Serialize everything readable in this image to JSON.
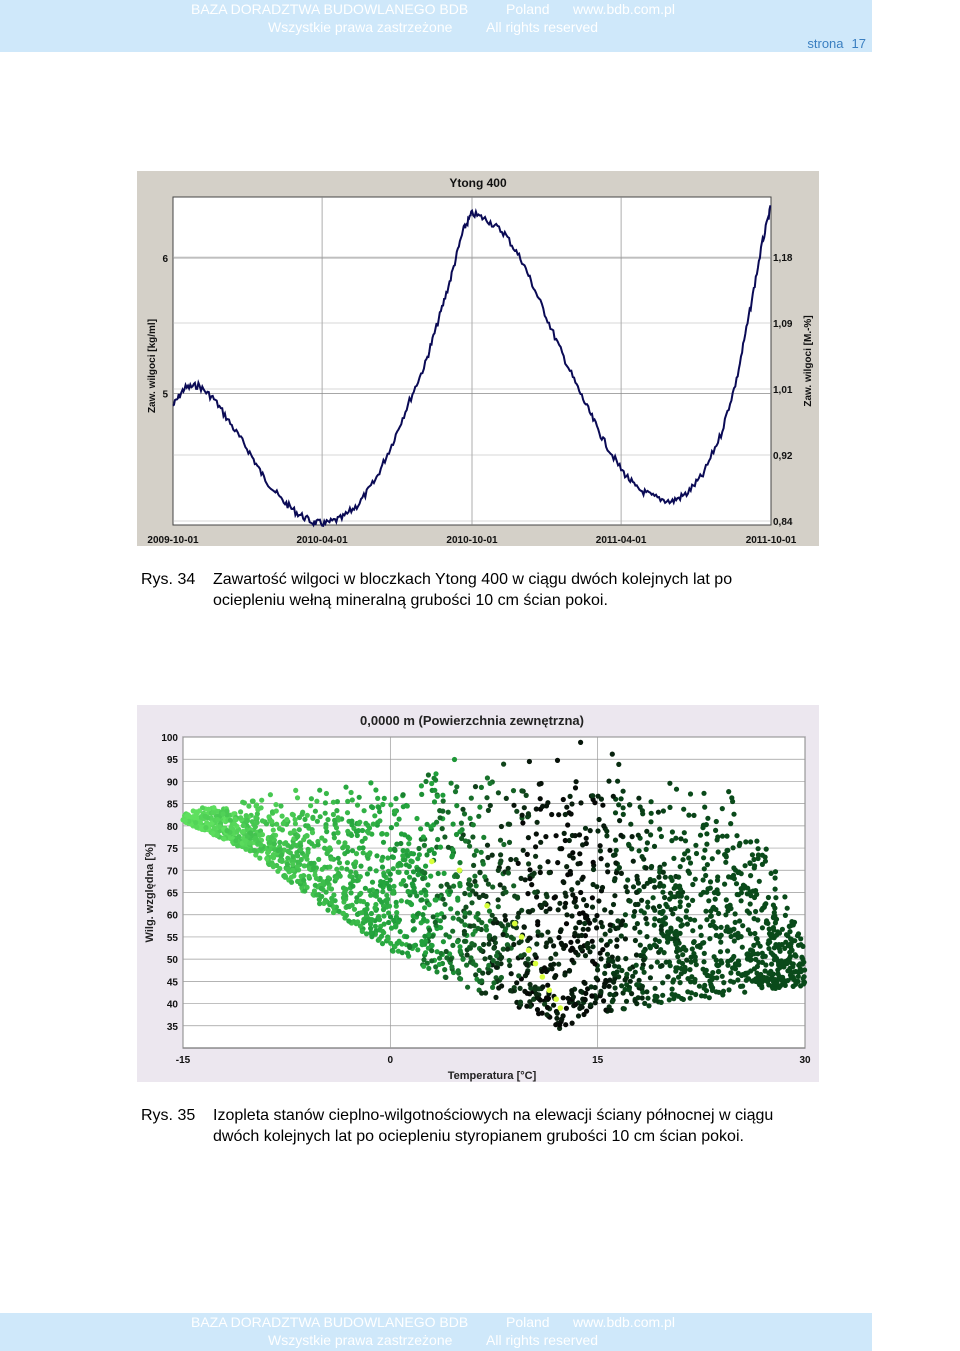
{
  "header": {
    "line1": [
      "BAZA DORADZTWA BUDOWLANEGO BDB",
      "Poland",
      "www.bdb.com.pl"
    ],
    "line2": [
      "Wszystkie prawa zastrzeżone",
      "All rights reserved"
    ],
    "page_label": "strona",
    "page_number": "17"
  },
  "watermark": {
    "text": "BDB"
  },
  "figure1": {
    "caption_label": "Rys. 34",
    "caption_line1": "Zawartość wilgoci w bloczkach Ytong 400 w ciągu dwóch kolejnych lat po",
    "caption_line2": "ociepleniu wełną mineralną grubości 10 cm ścian pokoi.",
    "chart_data": {
      "type": "line",
      "title": "Ytong 400",
      "ylabel": "Zaw. wilgoci [kg/ml]",
      "ylabel_right": "Zaw. wilgoci [M.-%]",
      "xlabel": "",
      "x_ticks": [
        "2009-10-01",
        "2010-04-01",
        "2010-10-01",
        "2011-04-01",
        "2011-10-01"
      ],
      "y_ticks": [
        "5",
        "6"
      ],
      "y2_ticks": [
        "0,84",
        "0,92",
        "1,01",
        "1,09",
        "1,18"
      ],
      "ylim": [
        4.03,
        6.45
      ],
      "grid": true,
      "line_color": "#0a0a55",
      "series": [
        {
          "x": [
            "2009-10-01",
            "2009-10-15",
            "2009-11-01",
            "2009-11-20",
            "2009-12-10",
            "2010-01-01",
            "2010-01-20",
            "2010-02-10",
            "2010-03-01",
            "2010-03-20",
            "2010-04-05",
            "2010-04-25",
            "2010-05-15",
            "2010-06-05",
            "2010-06-25",
            "2010-07-15",
            "2010-08-05",
            "2010-08-20",
            "2010-09-05",
            "2010-09-20",
            "2010-10-01",
            "2010-10-20",
            "2010-11-10",
            "2010-12-01",
            "2010-12-20",
            "2011-01-10",
            "2011-02-01",
            "2011-02-20",
            "2011-03-10",
            "2011-04-01",
            "2011-04-20",
            "2011-05-10",
            "2011-06-01",
            "2011-06-20",
            "2011-07-10",
            "2011-08-01",
            "2011-08-20",
            "2011-09-05",
            "2011-09-20",
            "2011-10-01"
          ],
          "values": [
            4.91,
            5.04,
            5.06,
            4.96,
            4.78,
            4.58,
            4.38,
            4.22,
            4.12,
            4.05,
            4.04,
            4.08,
            4.18,
            4.36,
            4.62,
            4.92,
            5.22,
            5.52,
            5.85,
            6.2,
            6.33,
            6.28,
            6.18,
            5.98,
            5.72,
            5.42,
            5.12,
            4.88,
            4.66,
            4.44,
            4.3,
            4.24,
            4.2,
            4.26,
            4.4,
            4.7,
            5.1,
            5.6,
            6.1,
            6.38
          ]
        }
      ]
    }
  },
  "figure2": {
    "caption_label": "Rys. 35",
    "caption_line1": "Izopleta stanów cieplno-wilgotnościowych na elewacji ściany północnej w ciągu",
    "caption_line2": "dwóch kolejnych lat po ociepleniu styropianem grubości 10 cm ścian pokoi.",
    "chart_data": {
      "type": "scatter",
      "title": "0,0000 m (Powierzchnia zewnętrzna)",
      "xlabel": "Temperatura [°C]",
      "ylabel": "Wilg. względna [%]",
      "x_ticks": [
        "-15",
        "0",
        "15",
        "30"
      ],
      "y_ticks": [
        "35",
        "40",
        "45",
        "50",
        "55",
        "60",
        "65",
        "70",
        "75",
        "80",
        "85",
        "90",
        "95",
        "100"
      ],
      "xlim": [
        -15,
        30
      ],
      "ylim": [
        30,
        100
      ],
      "grid": true,
      "colors": {
        "cold": "#5fe05f",
        "mid": "#1f9e3a",
        "warm": "#0a4a1a",
        "hot": "#050505",
        "highlight": "#d8ff3a"
      },
      "envelope": [
        [
          -15,
          83
        ],
        [
          -10,
          87
        ],
        [
          -5,
          89
        ],
        [
          0,
          92
        ],
        [
          5,
          96
        ],
        [
          10,
          99
        ],
        [
          15,
          99
        ],
        [
          20,
          95
        ],
        [
          25,
          88
        ],
        [
          28,
          70
        ],
        [
          30,
          55
        ]
      ],
      "lower_envelope": [
        [
          -15,
          81
        ],
        [
          -10,
          74
        ],
        [
          -5,
          62
        ],
        [
          0,
          52
        ],
        [
          5,
          44
        ],
        [
          10,
          38
        ],
        [
          12,
          34
        ],
        [
          15,
          38
        ],
        [
          20,
          40
        ],
        [
          25,
          42
        ],
        [
          30,
          44
        ]
      ],
      "highlight_points": [
        [
          7,
          62
        ],
        [
          9,
          58
        ],
        [
          9.5,
          55
        ],
        [
          10,
          52
        ],
        [
          10.5,
          49
        ],
        [
          11,
          46
        ],
        [
          11.5,
          43
        ],
        [
          12,
          41
        ],
        [
          12.3,
          39
        ],
        [
          5,
          70
        ],
        [
          3,
          72
        ]
      ]
    }
  }
}
